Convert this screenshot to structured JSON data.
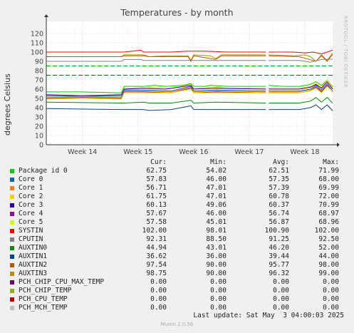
{
  "title": "Temperatures - by month",
  "side_text": "RRDTOOL / TOBI OETIKER",
  "legend_headers": {
    "cur": "Cur:",
    "min": "Min:",
    "avg": "Avg:",
    "max": "Max:"
  },
  "legend": [
    {
      "name": "Package id 0",
      "color": "#00cc00",
      "cur": "62.75",
      "min": "54.02",
      "avg": "62.51",
      "max": "71.99"
    },
    {
      "name": "Core 0",
      "color": "#0066b3",
      "cur": "57.83",
      "min": "46.00",
      "avg": "57.35",
      "max": "68.00"
    },
    {
      "name": "Core 1",
      "color": "#ff8000",
      "cur": "56.71",
      "min": "47.01",
      "avg": "57.39",
      "max": "69.99"
    },
    {
      "name": "Core 2",
      "color": "#ffcc00",
      "cur": "61.75",
      "min": "47.01",
      "avg": "60.78",
      "max": "72.00"
    },
    {
      "name": "Core 3",
      "color": "#330099",
      "cur": "60.13",
      "min": "49.06",
      "avg": "60.37",
      "max": "70.99"
    },
    {
      "name": "Core 4",
      "color": "#990099",
      "cur": "57.67",
      "min": "46.00",
      "avg": "56.74",
      "max": "68.97"
    },
    {
      "name": "Core 5",
      "color": "#ccff00",
      "cur": "57.58",
      "min": "45.01",
      "avg": "56.87",
      "max": "68.96"
    },
    {
      "name": "SYSTIN",
      "color": "#ff0000",
      "cur": "102.00",
      "min": "98.01",
      "avg": "100.90",
      "max": "102.00"
    },
    {
      "name": "CPUTIN",
      "color": "#808080",
      "cur": "92.31",
      "min": "88.50",
      "avg": "91.25",
      "max": "92.50"
    },
    {
      "name": "AUXTIN0",
      "color": "#008f00",
      "cur": "44.94",
      "min": "43.01",
      "avg": "46.20",
      "max": "52.00"
    },
    {
      "name": "AUXTIN1",
      "color": "#00487d",
      "cur": "36.62",
      "min": "36.00",
      "avg": "39.44",
      "max": "44.00"
    },
    {
      "name": "AUXTIN2",
      "color": "#b35a00",
      "cur": "97.54",
      "min": "90.00",
      "avg": "95.77",
      "max": "98.00"
    },
    {
      "name": "AUXTIN3",
      "color": "#b38f00",
      "cur": "98.75",
      "min": "90.00",
      "avg": "96.32",
      "max": "99.00"
    },
    {
      "name": "PCH_CHIP_CPU_MAX_TEMP",
      "color": "#6b006b",
      "cur": "0.00",
      "min": "0.00",
      "avg": "0.00",
      "max": "0.00"
    },
    {
      "name": "PCH_CHIP_TEMP",
      "color": "#8fb300",
      "cur": "0.00",
      "min": "0.00",
      "avg": "0.00",
      "max": "0.00"
    },
    {
      "name": "PCH_CPU_TEMP",
      "color": "#b30000",
      "cur": "0.00",
      "min": "0.00",
      "avg": "0.00",
      "max": "0.00"
    },
    {
      "name": "PCH_MCH_TEMP",
      "color": "#bebebe",
      "cur": "0.00",
      "min": "0.00",
      "avg": "0.00",
      "max": "0.00"
    }
  ],
  "footer": "Last update: Sat May  3 04:00:03 2025",
  "munin_version": "Munin 2.0.56",
  "chart_data": {
    "type": "line",
    "title": "Temperatures - by month",
    "ylabel": "degrees Celsius",
    "xlabel": "",
    "ylim": [
      0,
      130
    ],
    "yticks": [
      0,
      10,
      20,
      30,
      40,
      50,
      60,
      70,
      80,
      90,
      100,
      110,
      120
    ],
    "xlim": [
      13.35,
      18.5
    ],
    "xticks": [
      {
        "label": "Week 14",
        "x": 14
      },
      {
        "label": "Week 15",
        "x": 15
      },
      {
        "label": "Week 16",
        "x": 16
      },
      {
        "label": "Week 17",
        "x": 17
      },
      {
        "label": "Week 18",
        "x": 18
      }
    ],
    "gap": [
      17.3,
      17.35
    ],
    "warning_lines": [
      {
        "y": 85,
        "color": "#00aa00",
        "style": "dashed"
      },
      {
        "y": 75,
        "color": "#cc0000",
        "style": "dashed"
      }
    ],
    "grid": true,
    "series": [
      {
        "name": "SYSTIN",
        "color": "#ff0000",
        "points": [
          [
            13.35,
            100
          ],
          [
            14.7,
            100
          ],
          [
            14.75,
            100
          ],
          [
            15.05,
            102
          ],
          [
            15.1,
            100
          ],
          [
            15.6,
            100
          ],
          [
            15.9,
            101
          ],
          [
            16.2,
            101
          ],
          [
            16.6,
            100
          ],
          [
            17.3,
            100
          ],
          [
            17.35,
            100
          ],
          [
            17.8,
            100
          ],
          [
            18.0,
            99
          ],
          [
            18.15,
            100
          ],
          [
            18.3,
            98
          ],
          [
            18.45,
            101
          ],
          [
            18.5,
            102
          ]
        ]
      },
      {
        "name": "AUXTIN3",
        "color": "#b38f00",
        "points": [
          [
            13.35,
            95
          ],
          [
            14.7,
            95
          ],
          [
            14.75,
            97
          ],
          [
            15.1,
            97
          ],
          [
            15.2,
            95
          ],
          [
            15.5,
            96
          ],
          [
            15.9,
            96
          ],
          [
            15.95,
            91
          ],
          [
            16.0,
            97
          ],
          [
            16.3,
            96
          ],
          [
            16.4,
            93
          ],
          [
            16.5,
            97
          ],
          [
            17.0,
            97
          ],
          [
            17.3,
            97
          ],
          [
            17.35,
            97
          ],
          [
            17.8,
            96
          ],
          [
            18.0,
            97
          ],
          [
            18.1,
            95
          ],
          [
            18.2,
            90
          ],
          [
            18.3,
            97
          ],
          [
            18.4,
            91
          ],
          [
            18.5,
            99
          ]
        ]
      },
      {
        "name": "AUXTIN2",
        "color": "#b35a00",
        "points": [
          [
            13.35,
            95
          ],
          [
            14.7,
            95
          ],
          [
            14.75,
            96
          ],
          [
            15.1,
            96
          ],
          [
            15.2,
            95
          ],
          [
            15.9,
            95
          ],
          [
            15.95,
            90
          ],
          [
            16.0,
            96
          ],
          [
            16.4,
            92
          ],
          [
            16.5,
            96
          ],
          [
            17.3,
            96
          ],
          [
            17.35,
            96
          ],
          [
            17.9,
            95
          ],
          [
            18.2,
            90
          ],
          [
            18.3,
            96
          ],
          [
            18.4,
            90
          ],
          [
            18.5,
            97.5
          ]
        ]
      },
      {
        "name": "CPUTIN",
        "color": "#808080",
        "points": [
          [
            13.35,
            90
          ],
          [
            14.7,
            90
          ],
          [
            14.75,
            92
          ],
          [
            15.05,
            92
          ],
          [
            15.1,
            91
          ],
          [
            15.9,
            91
          ],
          [
            16.2,
            91
          ],
          [
            16.4,
            91
          ],
          [
            17.3,
            91
          ],
          [
            17.35,
            91
          ],
          [
            17.9,
            91
          ],
          [
            18.1,
            89
          ],
          [
            18.3,
            92
          ],
          [
            18.5,
            92.3
          ]
        ]
      },
      {
        "name": "Package id 0",
        "color": "#00cc00",
        "points": [
          [
            13.35,
            57
          ],
          [
            14.0,
            57
          ],
          [
            14.7,
            56
          ],
          [
            14.75,
            63
          ],
          [
            15.1,
            63
          ],
          [
            15.3,
            64
          ],
          [
            15.5,
            63
          ],
          [
            15.8,
            64
          ],
          [
            15.95,
            66
          ],
          [
            16.0,
            63
          ],
          [
            16.2,
            63
          ],
          [
            16.3,
            64
          ],
          [
            16.6,
            63
          ],
          [
            17.3,
            63
          ],
          [
            17.35,
            64
          ],
          [
            17.6,
            63
          ],
          [
            17.9,
            63
          ],
          [
            18.1,
            65
          ],
          [
            18.2,
            68
          ],
          [
            18.3,
            64
          ],
          [
            18.4,
            70
          ],
          [
            18.5,
            62.75
          ]
        ]
      },
      {
        "name": "Core 2",
        "color": "#ffcc00",
        "points": [
          [
            13.35,
            52
          ],
          [
            14.0,
            53
          ],
          [
            14.7,
            52
          ],
          [
            14.75,
            61
          ],
          [
            15.1,
            61
          ],
          [
            15.3,
            62
          ],
          [
            15.6,
            61
          ],
          [
            15.95,
            65
          ],
          [
            16.0,
            61
          ],
          [
            16.4,
            62
          ],
          [
            16.6,
            61
          ],
          [
            17.3,
            61
          ],
          [
            17.35,
            61
          ],
          [
            17.9,
            61
          ],
          [
            18.1,
            63
          ],
          [
            18.2,
            66
          ],
          [
            18.3,
            62
          ],
          [
            18.4,
            70
          ],
          [
            18.5,
            61.75
          ]
        ]
      },
      {
        "name": "Core 3",
        "color": "#330099",
        "points": [
          [
            13.35,
            54
          ],
          [
            14.0,
            53
          ],
          [
            14.7,
            54
          ],
          [
            14.75,
            60
          ],
          [
            15.1,
            61
          ],
          [
            15.5,
            60
          ],
          [
            15.95,
            64
          ],
          [
            16.0,
            60
          ],
          [
            16.4,
            61
          ],
          [
            17.3,
            60
          ],
          [
            17.35,
            60
          ],
          [
            17.9,
            60
          ],
          [
            18.1,
            62
          ],
          [
            18.2,
            65
          ],
          [
            18.3,
            61
          ],
          [
            18.4,
            68
          ],
          [
            18.5,
            60.13
          ]
        ]
      },
      {
        "name": "Core 0",
        "color": "#0066b3",
        "points": [
          [
            13.35,
            53
          ],
          [
            14.0,
            52
          ],
          [
            14.7,
            53
          ],
          [
            14.75,
            59
          ],
          [
            15.1,
            59
          ],
          [
            15.6,
            58
          ],
          [
            15.95,
            63
          ],
          [
            16.0,
            58
          ],
          [
            16.4,
            59
          ],
          [
            17.3,
            58
          ],
          [
            17.35,
            58
          ],
          [
            17.9,
            58
          ],
          [
            18.1,
            60
          ],
          [
            18.2,
            64
          ],
          [
            18.3,
            59
          ],
          [
            18.4,
            66
          ],
          [
            18.5,
            57.83
          ]
        ]
      },
      {
        "name": "Core 1",
        "color": "#ff8000",
        "points": [
          [
            13.35,
            51
          ],
          [
            14.0,
            52
          ],
          [
            14.7,
            51
          ],
          [
            14.75,
            58
          ],
          [
            15.1,
            58
          ],
          [
            15.6,
            57
          ],
          [
            15.95,
            62
          ],
          [
            16.0,
            57
          ],
          [
            16.4,
            58
          ],
          [
            17.3,
            57
          ],
          [
            17.35,
            57
          ],
          [
            17.9,
            57
          ],
          [
            18.1,
            59
          ],
          [
            18.2,
            63
          ],
          [
            18.3,
            58
          ],
          [
            18.4,
            65
          ],
          [
            18.5,
            56.71
          ]
        ]
      },
      {
        "name": "Core 4",
        "color": "#990099",
        "points": [
          [
            13.35,
            50
          ],
          [
            14.0,
            51
          ],
          [
            14.7,
            50
          ],
          [
            14.75,
            57
          ],
          [
            15.1,
            57
          ],
          [
            15.6,
            56
          ],
          [
            15.95,
            61
          ],
          [
            16.0,
            56
          ],
          [
            16.4,
            57
          ],
          [
            17.3,
            56
          ],
          [
            17.35,
            56
          ],
          [
            17.9,
            56
          ],
          [
            18.1,
            58
          ],
          [
            18.2,
            62
          ],
          [
            18.3,
            57
          ],
          [
            18.4,
            64
          ],
          [
            18.5,
            57.67
          ]
        ]
      },
      {
        "name": "Core 5",
        "color": "#ccff00",
        "points": [
          [
            13.35,
            49
          ],
          [
            14.0,
            50
          ],
          [
            14.7,
            49
          ],
          [
            14.75,
            56
          ],
          [
            15.1,
            56
          ],
          [
            15.6,
            56
          ],
          [
            15.95,
            60
          ],
          [
            16.0,
            56
          ],
          [
            16.4,
            56
          ],
          [
            17.3,
            56
          ],
          [
            17.35,
            56
          ],
          [
            17.9,
            56
          ],
          [
            18.1,
            58
          ],
          [
            18.2,
            61
          ],
          [
            18.3,
            56
          ],
          [
            18.4,
            63
          ],
          [
            18.5,
            57.58
          ]
        ]
      },
      {
        "name": "AUXTIN0",
        "color": "#008f00",
        "points": [
          [
            13.35,
            46
          ],
          [
            14.7,
            45
          ],
          [
            14.75,
            45
          ],
          [
            15.1,
            46
          ],
          [
            15.2,
            45
          ],
          [
            15.6,
            45
          ],
          [
            15.95,
            48
          ],
          [
            16.0,
            45
          ],
          [
            16.4,
            46
          ],
          [
            17.3,
            45
          ],
          [
            17.35,
            45
          ],
          [
            17.9,
            45
          ],
          [
            18.1,
            47
          ],
          [
            18.2,
            51
          ],
          [
            18.3,
            46
          ],
          [
            18.4,
            51
          ],
          [
            18.5,
            44.94
          ]
        ]
      },
      {
        "name": "AUXTIN1",
        "color": "#00487d",
        "points": [
          [
            13.35,
            39
          ],
          [
            14.7,
            38
          ],
          [
            14.75,
            38
          ],
          [
            15.1,
            38
          ],
          [
            15.2,
            37
          ],
          [
            15.6,
            38
          ],
          [
            15.95,
            42
          ],
          [
            16.0,
            38
          ],
          [
            16.4,
            38
          ],
          [
            17.3,
            38
          ],
          [
            17.35,
            38
          ],
          [
            17.9,
            38
          ],
          [
            18.1,
            40
          ],
          [
            18.2,
            43
          ],
          [
            18.3,
            38
          ],
          [
            18.4,
            43
          ],
          [
            18.5,
            36.62
          ]
        ]
      },
      {
        "name": "PCH_CHIP_CPU_MAX_TEMP",
        "color": "#6b006b",
        "points": [
          [
            13.35,
            0
          ],
          [
            18.5,
            0
          ]
        ]
      },
      {
        "name": "PCH_CHIP_TEMP",
        "color": "#8fb300",
        "points": [
          [
            13.35,
            0
          ],
          [
            18.5,
            0
          ]
        ]
      },
      {
        "name": "PCH_CPU_TEMP",
        "color": "#b30000",
        "points": [
          [
            13.35,
            0
          ],
          [
            18.5,
            0
          ]
        ]
      },
      {
        "name": "PCH_MCH_TEMP",
        "color": "#bebebe",
        "points": [
          [
            13.35,
            0
          ],
          [
            18.5,
            0
          ]
        ]
      }
    ]
  }
}
